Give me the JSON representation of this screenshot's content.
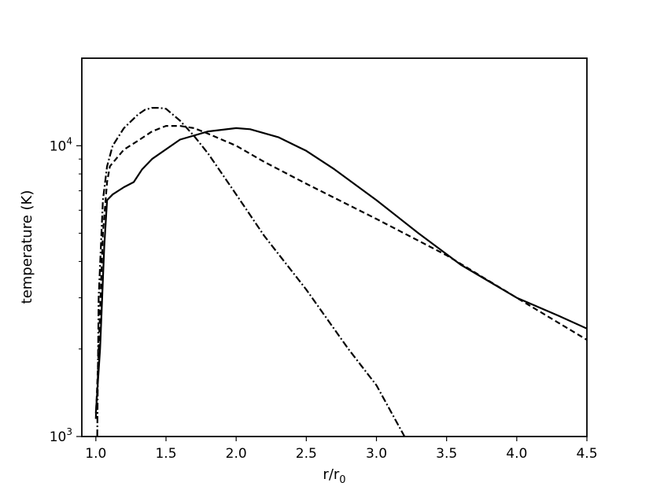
{
  "chart_data": {
    "type": "line",
    "title": "",
    "xlabel": "r/r",
    "xlabel_sub": "0",
    "ylabel": "temperature (K)",
    "xlim": [
      0.9,
      4.5
    ],
    "ylim": [
      1000,
      20000
    ],
    "yscale": "log",
    "grid": false,
    "xticks": [
      {
        "value": 1.0,
        "label": "1.0"
      },
      {
        "value": 1.5,
        "label": "1.5"
      },
      {
        "value": 2.0,
        "label": "2.0"
      },
      {
        "value": 2.5,
        "label": "2.5"
      },
      {
        "value": 3.0,
        "label": "3.0"
      },
      {
        "value": 3.5,
        "label": "3.5"
      },
      {
        "value": 4.0,
        "label": "4.0"
      },
      {
        "value": 4.5,
        "label": "4.5"
      }
    ],
    "yticks_major": [
      {
        "value": 1000,
        "base": "10",
        "exp": "3"
      },
      {
        "value": 10000,
        "base": "10",
        "exp": "4"
      }
    ],
    "yticks_minor": [
      2000,
      3000,
      4000,
      5000,
      6000,
      7000,
      8000,
      9000
    ],
    "series": [
      {
        "style": "solid",
        "x": [
          1.0,
          1.03,
          1.06,
          1.08,
          1.12,
          1.2,
          1.27,
          1.33,
          1.4,
          1.6,
          1.8,
          2.0,
          2.1,
          2.3,
          2.5,
          2.7,
          3.0,
          3.3,
          3.6,
          4.0,
          4.3,
          4.5
        ],
        "y": [
          1200,
          2000,
          4500,
          6500,
          6800,
          7200,
          7500,
          8300,
          9000,
          10500,
          11200,
          11500,
          11400,
          10700,
          9600,
          8300,
          6500,
          5000,
          3900,
          3000,
          2600,
          2350
        ]
      },
      {
        "style": "dashed",
        "x": [
          1.0,
          1.02,
          1.05,
          1.08,
          1.1,
          1.2,
          1.3,
          1.4,
          1.5,
          1.6,
          1.7,
          1.8,
          2.0,
          2.2,
          2.5,
          3.0,
          3.5,
          4.0,
          4.5
        ],
        "y": [
          1150,
          2000,
          5000,
          7500,
          8500,
          9700,
          10400,
          11200,
          11700,
          11700,
          11500,
          11000,
          10000,
          8800,
          7400,
          5600,
          4200,
          3000,
          2150
        ]
      },
      {
        "style": "dashdot",
        "x": [
          1.01,
          1.02,
          1.05,
          1.08,
          1.12,
          1.2,
          1.3,
          1.35,
          1.4,
          1.45,
          1.5,
          1.6,
          1.7,
          1.8,
          2.0,
          2.2,
          2.5,
          2.8,
          3.0,
          3.2
        ],
        "y": [
          1000,
          3000,
          6500,
          8500,
          10000,
          11500,
          12800,
          13300,
          13500,
          13500,
          13400,
          12200,
          10800,
          9400,
          6800,
          4900,
          3200,
          2000,
          1500,
          1000
        ]
      }
    ]
  }
}
